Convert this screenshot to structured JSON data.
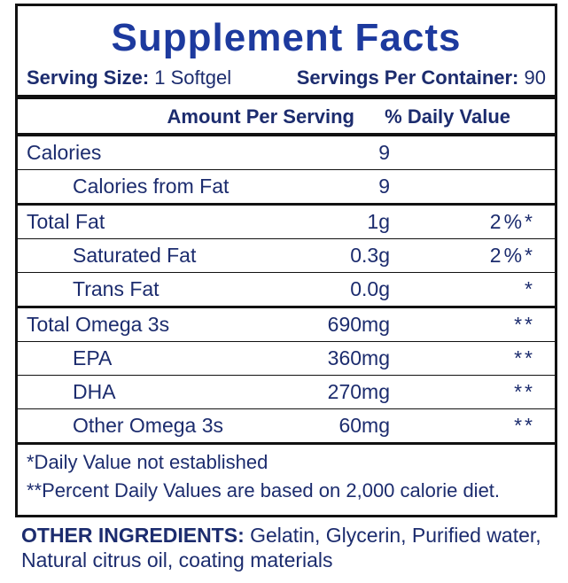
{
  "title": "Supplement Facts",
  "serving": {
    "size_label": "Serving Size:",
    "size": "1 Softgel",
    "servings_label": "Servings Per Container:",
    "servings": "90"
  },
  "header": {
    "amount": "Amount Per Serving",
    "dv": "% Daily Value"
  },
  "groups": [
    {
      "name": "Calories",
      "amount": "9",
      "subrows": [
        {
          "name": "Calories from Fat",
          "amount": "9"
        }
      ]
    },
    {
      "name": "Total Fat",
      "amount": "1g",
      "dv": "2%*",
      "subrows": [
        {
          "name": "Saturated Fat",
          "amount": "0.3g",
          "dv": "2%*"
        },
        {
          "name": "Trans Fat",
          "amount": "0.0g",
          "dv": "*"
        }
      ]
    },
    {
      "name": "Total Omega 3s",
      "amount": "690mg",
      "dv": "**",
      "subrows": [
        {
          "name": "EPA",
          "amount": "360mg",
          "dv": "**"
        },
        {
          "name": "DHA",
          "amount": "270mg",
          "dv": "**"
        },
        {
          "name": "Other Omega 3s",
          "amount": "60mg",
          "dv": "**"
        }
      ]
    }
  ],
  "footnotes": [
    "*Daily Value not established",
    "**Percent Daily Values are based on 2,000 calorie diet."
  ],
  "other_ingredients": {
    "label": "OTHER INGREDIENTS:",
    "text": "Gelatin, Glycerin, Purified water, Natural citrus oil, coating materials"
  }
}
